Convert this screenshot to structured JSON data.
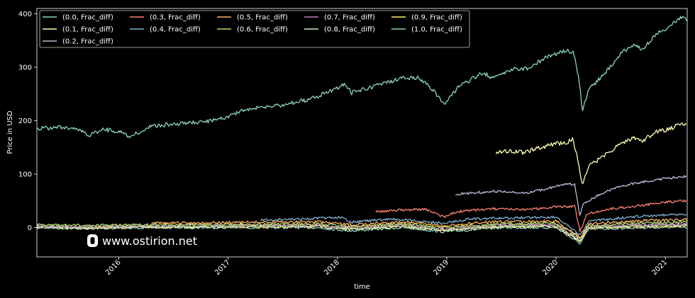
{
  "watermark": {
    "text": "www.ostirion.net",
    "icon": "ostirion-logo-icon"
  },
  "chart_data": {
    "type": "line",
    "title": "",
    "xlabel": "time",
    "ylabel": "Price in USD",
    "xlim": [
      2015.25,
      2021.2
    ],
    "ylim": [
      -55,
      410
    ],
    "xticks": [
      2016,
      2017,
      2018,
      2019,
      2020,
      2021
    ],
    "yticks": [
      0,
      100,
      200,
      300,
      400
    ],
    "grid": false,
    "legend_position": "top-left",
    "series": [
      {
        "name": "(0.0, Frac_diff)",
        "color": "#8dd3c7",
        "start": 2015.25,
        "points": [
          [
            2015.25,
            185
          ],
          [
            2015.5,
            188
          ],
          [
            2015.62,
            184
          ],
          [
            2015.72,
            172
          ],
          [
            2015.85,
            184
          ],
          [
            2016.0,
            180
          ],
          [
            2016.1,
            170
          ],
          [
            2016.3,
            190
          ],
          [
            2016.5,
            193
          ],
          [
            2016.75,
            197
          ],
          [
            2016.9,
            202
          ],
          [
            2017.2,
            222
          ],
          [
            2017.5,
            230
          ],
          [
            2017.75,
            240
          ],
          [
            2018.0,
            262
          ],
          [
            2018.07,
            270
          ],
          [
            2018.13,
            252
          ],
          [
            2018.3,
            262
          ],
          [
            2018.6,
            280
          ],
          [
            2018.75,
            280
          ],
          [
            2018.87,
            258
          ],
          [
            2018.98,
            232
          ],
          [
            2019.1,
            262
          ],
          [
            2019.33,
            290
          ],
          [
            2019.42,
            280
          ],
          [
            2019.6,
            296
          ],
          [
            2019.75,
            298
          ],
          [
            2019.9,
            318
          ],
          [
            2020.1,
            332
          ],
          [
            2020.17,
            325
          ],
          [
            2020.22,
            260
          ],
          [
            2020.24,
            220
          ],
          [
            2020.3,
            258
          ],
          [
            2020.45,
            290
          ],
          [
            2020.6,
            328
          ],
          [
            2020.7,
            340
          ],
          [
            2020.8,
            335
          ],
          [
            2020.9,
            360
          ],
          [
            2021.0,
            372
          ],
          [
            2021.15,
            395
          ],
          [
            2021.2,
            386
          ]
        ]
      },
      {
        "name": "(0.1, Frac_diff)",
        "color": "#ffffb3",
        "start": 2019.45,
        "points": [
          [
            2019.45,
            140
          ],
          [
            2019.6,
            144
          ],
          [
            2019.7,
            140
          ],
          [
            2019.8,
            146
          ],
          [
            2019.95,
            155
          ],
          [
            2020.1,
            160
          ],
          [
            2020.15,
            165
          ],
          [
            2020.19,
            140
          ],
          [
            2020.22,
            100
          ],
          [
            2020.24,
            82
          ],
          [
            2020.3,
            115
          ],
          [
            2020.45,
            136
          ],
          [
            2020.6,
            158
          ],
          [
            2020.7,
            168
          ],
          [
            2020.8,
            163
          ],
          [
            2020.9,
            178
          ],
          [
            2021.05,
            185
          ],
          [
            2021.15,
            196
          ],
          [
            2021.2,
            188
          ]
        ]
      },
      {
        "name": "(0.2, Frac_diff)",
        "color": "#bebada",
        "start": 2019.08,
        "points": [
          [
            2019.08,
            62
          ],
          [
            2019.3,
            66
          ],
          [
            2019.45,
            68
          ],
          [
            2019.7,
            64
          ],
          [
            2019.9,
            72
          ],
          [
            2020.1,
            82
          ],
          [
            2020.17,
            80
          ],
          [
            2020.22,
            22
          ],
          [
            2020.25,
            45
          ],
          [
            2020.4,
            62
          ],
          [
            2020.6,
            78
          ],
          [
            2020.8,
            86
          ],
          [
            2021.0,
            92
          ],
          [
            2021.2,
            96
          ]
        ]
      },
      {
        "name": "(0.3, Frac_diff)",
        "color": "#fb8072",
        "start": 2018.35,
        "points": [
          [
            2018.35,
            30
          ],
          [
            2018.6,
            33
          ],
          [
            2018.8,
            34
          ],
          [
            2018.98,
            20
          ],
          [
            2019.1,
            30
          ],
          [
            2019.4,
            35
          ],
          [
            2019.7,
            33
          ],
          [
            2019.95,
            38
          ],
          [
            2020.17,
            40
          ],
          [
            2020.22,
            -8
          ],
          [
            2020.28,
            26
          ],
          [
            2020.5,
            35
          ],
          [
            2020.8,
            42
          ],
          [
            2021.0,
            48
          ],
          [
            2021.2,
            50
          ]
        ]
      },
      {
        "name": "(0.4, Frac_diff)",
        "color": "#80b1d3",
        "start": 2017.3,
        "points": [
          [
            2017.3,
            14
          ],
          [
            2017.7,
            16
          ],
          [
            2018.05,
            20
          ],
          [
            2018.12,
            10
          ],
          [
            2018.5,
            16
          ],
          [
            2018.98,
            8
          ],
          [
            2019.2,
            16
          ],
          [
            2019.6,
            18
          ],
          [
            2020.0,
            20
          ],
          [
            2020.22,
            -15
          ],
          [
            2020.3,
            12
          ],
          [
            2020.7,
            20
          ],
          [
            2021.0,
            24
          ],
          [
            2021.2,
            26
          ]
        ]
      },
      {
        "name": "(0.5, Frac_diff)",
        "color": "#fdb462",
        "start": 2016.3,
        "points": [
          [
            2016.3,
            8
          ],
          [
            2016.8,
            9
          ],
          [
            2017.3,
            10
          ],
          [
            2017.8,
            11
          ],
          [
            2018.12,
            5
          ],
          [
            2018.6,
            11
          ],
          [
            2018.98,
            3
          ],
          [
            2019.4,
            11
          ],
          [
            2020.0,
            12
          ],
          [
            2020.22,
            -18
          ],
          [
            2020.3,
            7
          ],
          [
            2020.8,
            13
          ],
          [
            2021.2,
            15
          ]
        ]
      },
      {
        "name": "(0.6, Frac_diff)",
        "color": "#b3de69",
        "start": 2015.25,
        "points": [
          [
            2015.25,
            5
          ],
          [
            2015.7,
            4
          ],
          [
            2016.3,
            5
          ],
          [
            2016.8,
            6
          ],
          [
            2017.3,
            6
          ],
          [
            2017.8,
            7
          ],
          [
            2018.12,
            2
          ],
          [
            2018.6,
            7
          ],
          [
            2018.98,
            0
          ],
          [
            2019.5,
            7
          ],
          [
            2020.0,
            8
          ],
          [
            2020.22,
            -20
          ],
          [
            2020.3,
            3
          ],
          [
            2020.8,
            9
          ],
          [
            2021.2,
            10
          ]
        ]
      },
      {
        "name": "(0.7, Frac_diff)",
        "color": "#bc80bd",
        "start": 2015.25,
        "points": [
          [
            2015.25,
            3
          ],
          [
            2015.7,
            2
          ],
          [
            2016.3,
            3
          ],
          [
            2016.8,
            4
          ],
          [
            2017.3,
            4
          ],
          [
            2017.8,
            5
          ],
          [
            2018.12,
            0
          ],
          [
            2018.6,
            5
          ],
          [
            2018.98,
            -2
          ],
          [
            2019.5,
            5
          ],
          [
            2020.0,
            6
          ],
          [
            2020.22,
            -22
          ],
          [
            2020.3,
            2
          ],
          [
            2020.8,
            6
          ],
          [
            2021.2,
            7
          ]
        ]
      },
      {
        "name": "(0.8, Frac_diff)",
        "color": "#ccebc5",
        "start": 2015.25,
        "points": [
          [
            2015.25,
            2
          ],
          [
            2015.7,
            0
          ],
          [
            2016.3,
            2
          ],
          [
            2016.8,
            2
          ],
          [
            2017.3,
            3
          ],
          [
            2017.8,
            3
          ],
          [
            2018.12,
            -2
          ],
          [
            2018.6,
            3
          ],
          [
            2018.98,
            -4
          ],
          [
            2019.5,
            3
          ],
          [
            2020.0,
            4
          ],
          [
            2020.22,
            -24
          ],
          [
            2020.3,
            0
          ],
          [
            2020.8,
            4
          ],
          [
            2021.2,
            5
          ]
        ]
      },
      {
        "name": "(0.9, Frac_diff)",
        "color": "#ffed6f",
        "start": 2015.25,
        "points": [
          [
            2015.25,
            1
          ],
          [
            2015.7,
            -1
          ],
          [
            2016.3,
            1
          ],
          [
            2016.8,
            1
          ],
          [
            2017.3,
            1
          ],
          [
            2017.8,
            2
          ],
          [
            2018.12,
            -3
          ],
          [
            2018.6,
            2
          ],
          [
            2018.98,
            -5
          ],
          [
            2019.5,
            2
          ],
          [
            2020.0,
            2
          ],
          [
            2020.22,
            -26
          ],
          [
            2020.3,
            -1
          ],
          [
            2020.8,
            2
          ],
          [
            2021.2,
            3
          ]
        ]
      },
      {
        "name": "(1.0, Frac_diff)",
        "color": "#8dd3c7",
        "start": 2015.25,
        "points": [
          [
            2015.25,
            0
          ],
          [
            2015.7,
            -2
          ],
          [
            2016.3,
            0
          ],
          [
            2016.8,
            0
          ],
          [
            2017.3,
            0
          ],
          [
            2017.8,
            0
          ],
          [
            2018.12,
            -6
          ],
          [
            2018.6,
            0
          ],
          [
            2018.98,
            -8
          ],
          [
            2019.5,
            0
          ],
          [
            2020.0,
            0
          ],
          [
            2020.22,
            -30
          ],
          [
            2020.3,
            -3
          ],
          [
            2020.8,
            0
          ],
          [
            2021.2,
            1
          ]
        ]
      }
    ]
  }
}
